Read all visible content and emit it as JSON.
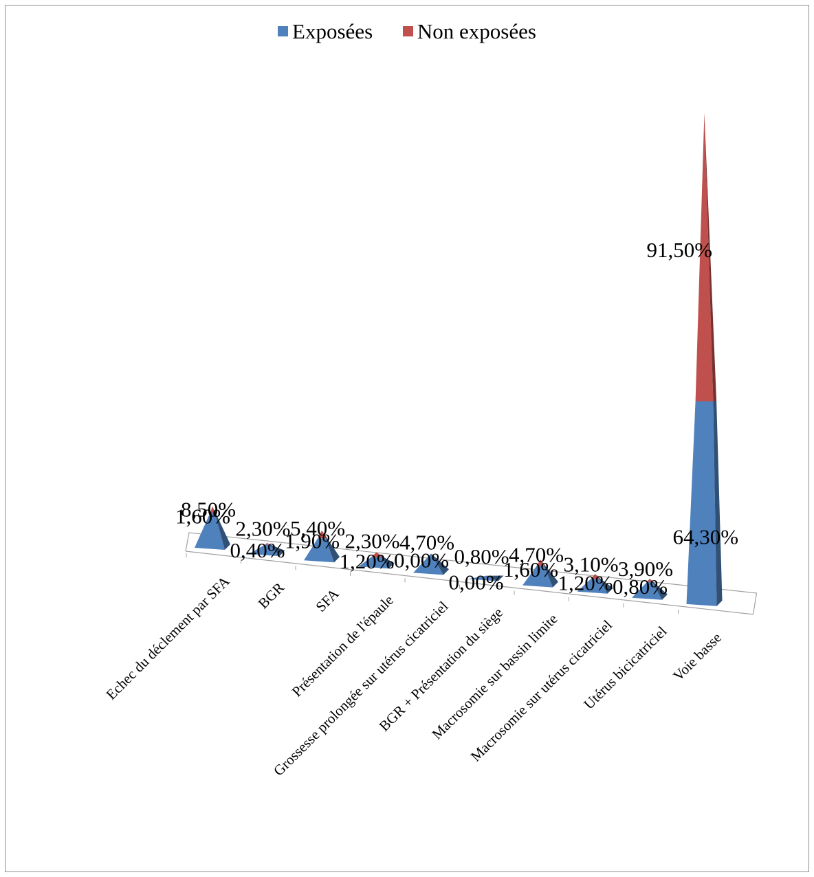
{
  "chart_data": {
    "type": "bar",
    "style": "3d-pyramid-stacked",
    "categories": [
      "Echec du déclement par SFA",
      "BGR",
      "SFA",
      "Présentation de l'épaule",
      "Grossesse prolongée sur utérus cicatriciel",
      "BGR + Présentation du siège",
      "Macrosomie sur bassin limite",
      "Macrosomie sur utérus cicatriciel",
      "Utérus bicicatriciel",
      "Voie basse"
    ],
    "series": [
      {
        "name": "Exposées",
        "color": "#4f81bd",
        "values": [
          8.5,
          2.3,
          5.4,
          2.3,
          4.7,
          0.8,
          4.7,
          3.1,
          3.9,
          64.3
        ],
        "labels": [
          "8,50%",
          "2,30%",
          "5,40%",
          "2,30%",
          "4,70%",
          "0,80%",
          "4,70%",
          "3,10%",
          "3,90%",
          "64,30%"
        ]
      },
      {
        "name": "Non exposées",
        "color": "#c0504d",
        "values": [
          1.6,
          0.4,
          1.9,
          1.2,
          0.0,
          0.0,
          1.6,
          1.2,
          0.8,
          91.5
        ],
        "labels": [
          "1,60%",
          "0,40%",
          "1,90%",
          "1,20%",
          "0,00%",
          "0,00%",
          "1,60%",
          "1,20%",
          "0,80%",
          "91,50%"
        ]
      }
    ],
    "legend_position": "top",
    "grid": false
  }
}
